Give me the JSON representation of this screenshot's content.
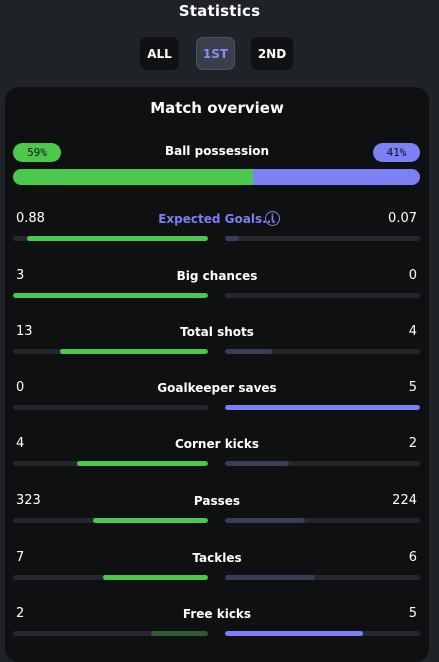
{
  "header": {
    "title": "Statistics"
  },
  "tabs": [
    {
      "label": "ALL",
      "active": false
    },
    {
      "label": "1ST",
      "active": true
    },
    {
      "label": "2ND",
      "active": false
    }
  ],
  "colors": {
    "home": "#4cc94c",
    "home_dim": "#2e5a30",
    "away": "#7b80f5",
    "away_dim": "#3a3d58"
  },
  "overview": {
    "title": "Match overview",
    "possession": {
      "label": "Ball possession",
      "home": "59%",
      "away": "41%",
      "home_fraction": 0.59
    },
    "stats": [
      {
        "label": "Expected Goals...",
        "home": "0.88",
        "away": "0.07",
        "home_fraction": 0.93,
        "away_fraction": 0.07,
        "home_strong": true,
        "away_strong": false,
        "link": true
      },
      {
        "label": "Big chances",
        "home": "3",
        "away": "0",
        "home_fraction": 1.0,
        "away_fraction": 0.0,
        "home_strong": true,
        "away_strong": false
      },
      {
        "label": "Total shots",
        "home": "13",
        "away": "4",
        "home_fraction": 0.76,
        "away_fraction": 0.24,
        "home_strong": true,
        "away_strong": false
      },
      {
        "label": "Goalkeeper saves",
        "home": "0",
        "away": "5",
        "home_fraction": 0.0,
        "away_fraction": 1.0,
        "home_strong": false,
        "away_strong": true
      },
      {
        "label": "Corner kicks",
        "home": "4",
        "away": "2",
        "home_fraction": 0.67,
        "away_fraction": 0.33,
        "home_strong": true,
        "away_strong": false
      },
      {
        "label": "Passes",
        "home": "323",
        "away": "224",
        "home_fraction": 0.59,
        "away_fraction": 0.41,
        "home_strong": true,
        "away_strong": false
      },
      {
        "label": "Tackles",
        "home": "7",
        "away": "6",
        "home_fraction": 0.54,
        "away_fraction": 0.46,
        "home_strong": true,
        "away_strong": false
      },
      {
        "label": "Free kicks",
        "home": "2",
        "away": "5",
        "home_fraction": 0.29,
        "away_fraction": 0.71,
        "home_strong": false,
        "away_strong": true
      }
    ]
  }
}
